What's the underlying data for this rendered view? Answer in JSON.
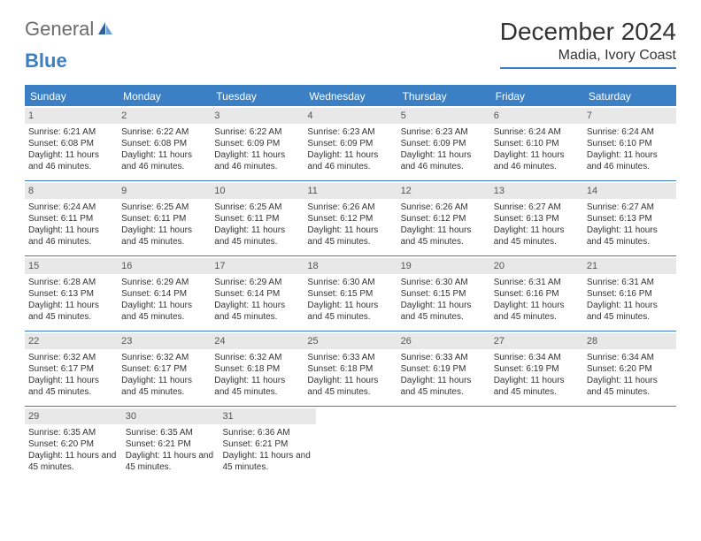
{
  "logo": {
    "text1": "General",
    "text2": "Blue"
  },
  "title": "December 2024",
  "location": "Madia, Ivory Coast",
  "colors": {
    "accent": "#3b7fc4",
    "header_bg": "#3b7fc4",
    "header_text": "#ffffff",
    "daynum_bg": "#e8e8e8",
    "text": "#333333",
    "logo_gray": "#6b6b6b",
    "logo_blue": "#3b7fc4",
    "background": "#ffffff"
  },
  "typography": {
    "title_fontsize": 28,
    "location_fontsize": 16,
    "dayheader_fontsize": 12,
    "daynum_fontsize": 11,
    "body_fontsize": 10
  },
  "day_headers": [
    "Sunday",
    "Monday",
    "Tuesday",
    "Wednesday",
    "Thursday",
    "Friday",
    "Saturday"
  ],
  "weeks": [
    [
      {
        "n": "1",
        "sr": "Sunrise: 6:21 AM",
        "ss": "Sunset: 6:08 PM",
        "dl": "Daylight: 11 hours and 46 minutes."
      },
      {
        "n": "2",
        "sr": "Sunrise: 6:22 AM",
        "ss": "Sunset: 6:08 PM",
        "dl": "Daylight: 11 hours and 46 minutes."
      },
      {
        "n": "3",
        "sr": "Sunrise: 6:22 AM",
        "ss": "Sunset: 6:09 PM",
        "dl": "Daylight: 11 hours and 46 minutes."
      },
      {
        "n": "4",
        "sr": "Sunrise: 6:23 AM",
        "ss": "Sunset: 6:09 PM",
        "dl": "Daylight: 11 hours and 46 minutes."
      },
      {
        "n": "5",
        "sr": "Sunrise: 6:23 AM",
        "ss": "Sunset: 6:09 PM",
        "dl": "Daylight: 11 hours and 46 minutes."
      },
      {
        "n": "6",
        "sr": "Sunrise: 6:24 AM",
        "ss": "Sunset: 6:10 PM",
        "dl": "Daylight: 11 hours and 46 minutes."
      },
      {
        "n": "7",
        "sr": "Sunrise: 6:24 AM",
        "ss": "Sunset: 6:10 PM",
        "dl": "Daylight: 11 hours and 46 minutes."
      }
    ],
    [
      {
        "n": "8",
        "sr": "Sunrise: 6:24 AM",
        "ss": "Sunset: 6:11 PM",
        "dl": "Daylight: 11 hours and 46 minutes."
      },
      {
        "n": "9",
        "sr": "Sunrise: 6:25 AM",
        "ss": "Sunset: 6:11 PM",
        "dl": "Daylight: 11 hours and 45 minutes."
      },
      {
        "n": "10",
        "sr": "Sunrise: 6:25 AM",
        "ss": "Sunset: 6:11 PM",
        "dl": "Daylight: 11 hours and 45 minutes."
      },
      {
        "n": "11",
        "sr": "Sunrise: 6:26 AM",
        "ss": "Sunset: 6:12 PM",
        "dl": "Daylight: 11 hours and 45 minutes."
      },
      {
        "n": "12",
        "sr": "Sunrise: 6:26 AM",
        "ss": "Sunset: 6:12 PM",
        "dl": "Daylight: 11 hours and 45 minutes."
      },
      {
        "n": "13",
        "sr": "Sunrise: 6:27 AM",
        "ss": "Sunset: 6:13 PM",
        "dl": "Daylight: 11 hours and 45 minutes."
      },
      {
        "n": "14",
        "sr": "Sunrise: 6:27 AM",
        "ss": "Sunset: 6:13 PM",
        "dl": "Daylight: 11 hours and 45 minutes."
      }
    ],
    [
      {
        "n": "15",
        "sr": "Sunrise: 6:28 AM",
        "ss": "Sunset: 6:13 PM",
        "dl": "Daylight: 11 hours and 45 minutes."
      },
      {
        "n": "16",
        "sr": "Sunrise: 6:29 AM",
        "ss": "Sunset: 6:14 PM",
        "dl": "Daylight: 11 hours and 45 minutes."
      },
      {
        "n": "17",
        "sr": "Sunrise: 6:29 AM",
        "ss": "Sunset: 6:14 PM",
        "dl": "Daylight: 11 hours and 45 minutes."
      },
      {
        "n": "18",
        "sr": "Sunrise: 6:30 AM",
        "ss": "Sunset: 6:15 PM",
        "dl": "Daylight: 11 hours and 45 minutes."
      },
      {
        "n": "19",
        "sr": "Sunrise: 6:30 AM",
        "ss": "Sunset: 6:15 PM",
        "dl": "Daylight: 11 hours and 45 minutes."
      },
      {
        "n": "20",
        "sr": "Sunrise: 6:31 AM",
        "ss": "Sunset: 6:16 PM",
        "dl": "Daylight: 11 hours and 45 minutes."
      },
      {
        "n": "21",
        "sr": "Sunrise: 6:31 AM",
        "ss": "Sunset: 6:16 PM",
        "dl": "Daylight: 11 hours and 45 minutes."
      }
    ],
    [
      {
        "n": "22",
        "sr": "Sunrise: 6:32 AM",
        "ss": "Sunset: 6:17 PM",
        "dl": "Daylight: 11 hours and 45 minutes."
      },
      {
        "n": "23",
        "sr": "Sunrise: 6:32 AM",
        "ss": "Sunset: 6:17 PM",
        "dl": "Daylight: 11 hours and 45 minutes."
      },
      {
        "n": "24",
        "sr": "Sunrise: 6:32 AM",
        "ss": "Sunset: 6:18 PM",
        "dl": "Daylight: 11 hours and 45 minutes."
      },
      {
        "n": "25",
        "sr": "Sunrise: 6:33 AM",
        "ss": "Sunset: 6:18 PM",
        "dl": "Daylight: 11 hours and 45 minutes."
      },
      {
        "n": "26",
        "sr": "Sunrise: 6:33 AM",
        "ss": "Sunset: 6:19 PM",
        "dl": "Daylight: 11 hours and 45 minutes."
      },
      {
        "n": "27",
        "sr": "Sunrise: 6:34 AM",
        "ss": "Sunset: 6:19 PM",
        "dl": "Daylight: 11 hours and 45 minutes."
      },
      {
        "n": "28",
        "sr": "Sunrise: 6:34 AM",
        "ss": "Sunset: 6:20 PM",
        "dl": "Daylight: 11 hours and 45 minutes."
      }
    ],
    [
      {
        "n": "29",
        "sr": "Sunrise: 6:35 AM",
        "ss": "Sunset: 6:20 PM",
        "dl": "Daylight: 11 hours and 45 minutes."
      },
      {
        "n": "30",
        "sr": "Sunrise: 6:35 AM",
        "ss": "Sunset: 6:21 PM",
        "dl": "Daylight: 11 hours and 45 minutes."
      },
      {
        "n": "31",
        "sr": "Sunrise: 6:36 AM",
        "ss": "Sunset: 6:21 PM",
        "dl": "Daylight: 11 hours and 45 minutes."
      },
      null,
      null,
      null,
      null
    ]
  ]
}
